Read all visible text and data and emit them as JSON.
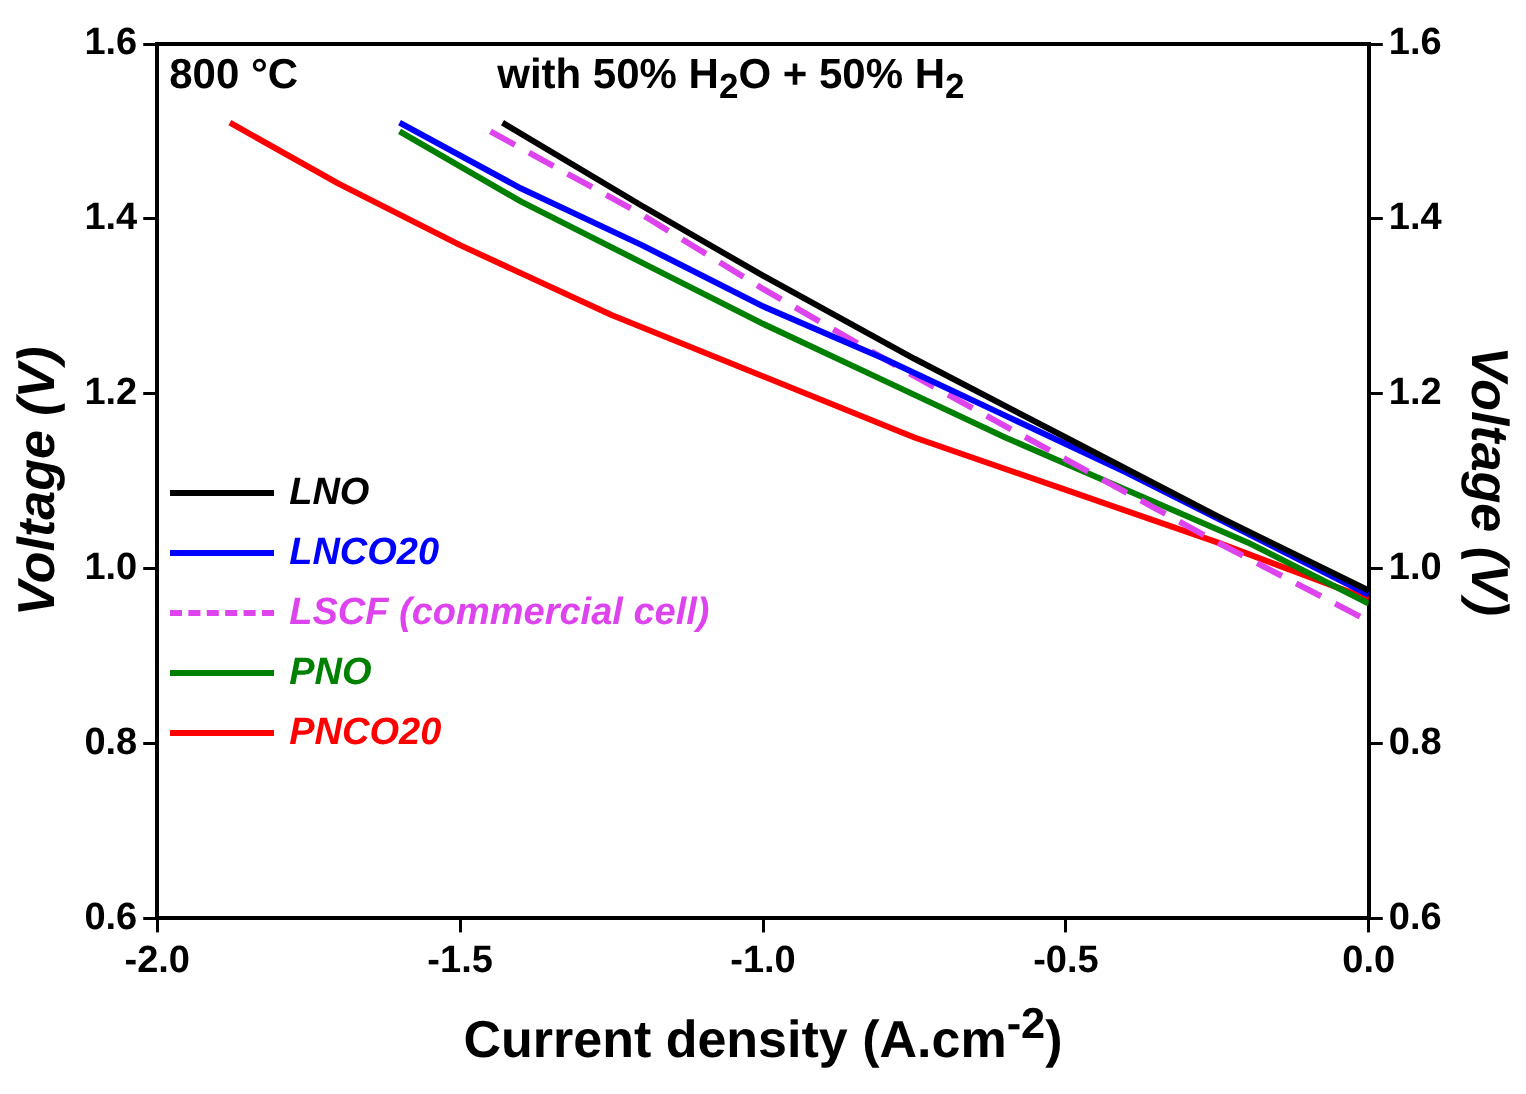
{
  "chart_data": {
    "type": "line",
    "xlabel": "Current density (A.cm$^{-2}$)",
    "ylabel": "Voltage (V)",
    "y2label": "Voltage (V)",
    "annotations": [
      "800 °C",
      "with 50% H$_{2}$O + 50% H$_{2}$"
    ],
    "xlim": [
      -2.0,
      0.0
    ],
    "xticks": [
      {
        "value": -2.0,
        "label": "-2.0"
      },
      -1.5,
      {
        "value": -1.0,
        "label": "-1.0"
      },
      -0.5,
      {
        "value": 0.0,
        "label": "0.0"
      }
    ],
    "ylim": [
      0.6,
      1.6
    ],
    "yticks": [
      0.6,
      0.8,
      {
        "value": 1.0,
        "label": "1.0"
      },
      1.2,
      1.4,
      1.6
    ],
    "y2lim": [
      0.6,
      1.6
    ],
    "y2ticks": [
      0.6,
      0.8,
      {
        "value": 1.0,
        "label": "1.0"
      },
      1.2,
      1.4,
      1.6
    ],
    "grid": false,
    "legend": "left",
    "marker": "none",
    "series": [
      {
        "name": "LNO",
        "color": "#000000",
        "x": [
          -1.43,
          -1.2,
          -1.0,
          -0.75,
          -0.5,
          -0.25,
          0
        ],
        "values": [
          1.51,
          1.415,
          1.335,
          1.24,
          1.15,
          1.06,
          0.975
        ]
      },
      {
        "name": "LNCO20",
        "color": "#0000ff",
        "x": [
          -1.6,
          -1.4,
          -1.2,
          -1.0,
          -0.8,
          -0.6,
          -0.4,
          -0.2,
          0
        ],
        "values": [
          1.51,
          1.435,
          1.37,
          1.3,
          1.24,
          1.175,
          1.11,
          1.04,
          0.97
        ]
      },
      {
        "name": "LSCF (commercial cell)",
        "color": "#dd44ee",
        "line_style": "dashed",
        "x": [
          -1.45,
          -1.2,
          -1.0,
          -0.75,
          -0.5,
          -0.25,
          0
        ],
        "values": [
          1.5,
          1.405,
          1.32,
          1.22,
          1.125,
          1.03,
          0.94
        ]
      },
      {
        "name": "PNO",
        "color": "#008000",
        "x": [
          -1.6,
          -1.4,
          -1.2,
          -1.0,
          -0.8,
          -0.6,
          -0.4,
          -0.2,
          0
        ],
        "values": [
          1.5,
          1.42,
          1.35,
          1.28,
          1.215,
          1.15,
          1.09,
          1.03,
          0.96
        ]
      },
      {
        "name": "PNCO20",
        "color": "#ff0000",
        "x": [
          -1.88,
          -1.7,
          -1.5,
          -1.25,
          -1.0,
          -0.75,
          -0.5,
          -0.25,
          0
        ],
        "values": [
          1.51,
          1.44,
          1.37,
          1.29,
          1.22,
          1.15,
          1.09,
          1.03,
          0.965
        ]
      }
    ]
  }
}
